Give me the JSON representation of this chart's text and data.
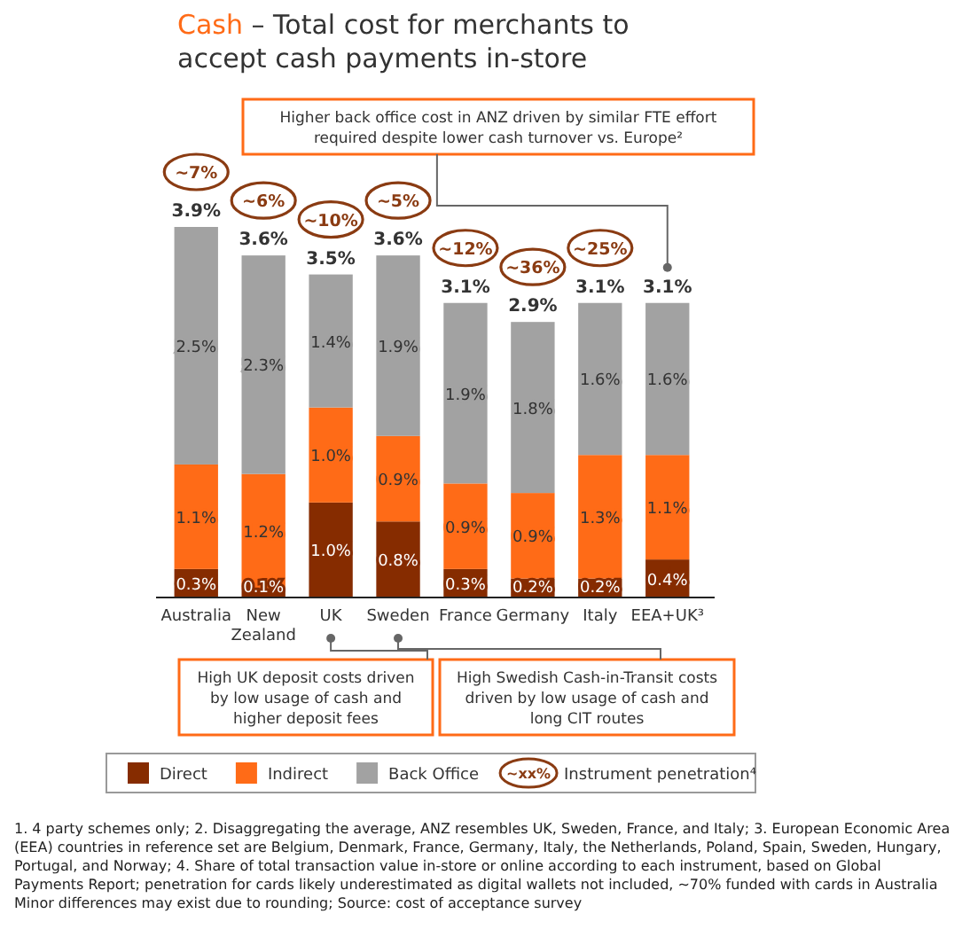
{
  "chart_data": {
    "type": "bar",
    "stacked": true,
    "legend": "bottom",
    "title": "Cash – Total cost for merchants to accept cash payments in-store",
    "categories": [
      "Australia",
      "New Zealand",
      "UK",
      "Sweden",
      "France",
      "Germany",
      "Italy",
      "EEA+UK³"
    ],
    "series": [
      {
        "name": "Direct",
        "color": "#862c00",
        "values": [
          0.3,
          0.1,
          1.0,
          0.8,
          0.3,
          0.2,
          0.2,
          0.4
        ],
        "value_labels": [
          "0.3%",
          "0.1%",
          "1.0%",
          "0.8%",
          "0.3%",
          "0.2%",
          "0.2%",
          "0.4%"
        ]
      },
      {
        "name": "Indirect",
        "color": "#ff6b17",
        "values": [
          1.1,
          1.2,
          1.0,
          0.9,
          0.9,
          0.9,
          1.3,
          1.1
        ],
        "value_labels": [
          "1.1%",
          "1.2%",
          "1.0%",
          "0.9%",
          "0.9%",
          "0.9%",
          "1.3%",
          "1.1%"
        ]
      },
      {
        "name": "Back Office",
        "color": "#a2a2a2",
        "values": [
          2.5,
          2.3,
          1.4,
          1.9,
          1.9,
          1.8,
          1.6,
          1.6
        ],
        "value_labels": [
          "2.5%",
          "2.3%",
          "1.4%",
          "1.9%",
          "1.9%",
          "1.8%",
          "1.6%",
          "1.6%"
        ]
      }
    ],
    "totals": [
      "3.9%",
      "3.6%",
      "3.5%",
      "3.6%",
      "3.1%",
      "2.9%",
      "3.1%",
      "3.1%"
    ],
    "annotations": [
      "~7%",
      "~6%",
      "~10%",
      "~5%",
      "~12%",
      "~36%",
      "~25%",
      "Higher back office cost in ANZ driven by similar FTE effort required despite lower cash turnover vs. Europe²",
      "High UK deposit costs driven by low usage of cash and higher deposit fees",
      "High Swedish Cash-in-Transit costs driven by low usage of cash and long CIT routes",
      "~xx%",
      "Instrument penetration⁴",
      "1. 4 party schemes only; 2. Disaggregating the average, ANZ resembles UK, Sweden, France, and Italy; 3. European Economic Area (EEA) countries in reference set are Belgium, Denmark, France, Germany, Italy, the Netherlands, Poland, Spain, Sweden, Hungary, Portugal, and Norway; 4. Share of total transaction value in-store or online according to each instrument, based on Global Payments Report; penetration for cards likely underestimated as digital wallets not included, ~70% funded with cards in Australia Minor differences may exist due to rounding; Source: cost of acceptance survey"
    ]
  }
}
